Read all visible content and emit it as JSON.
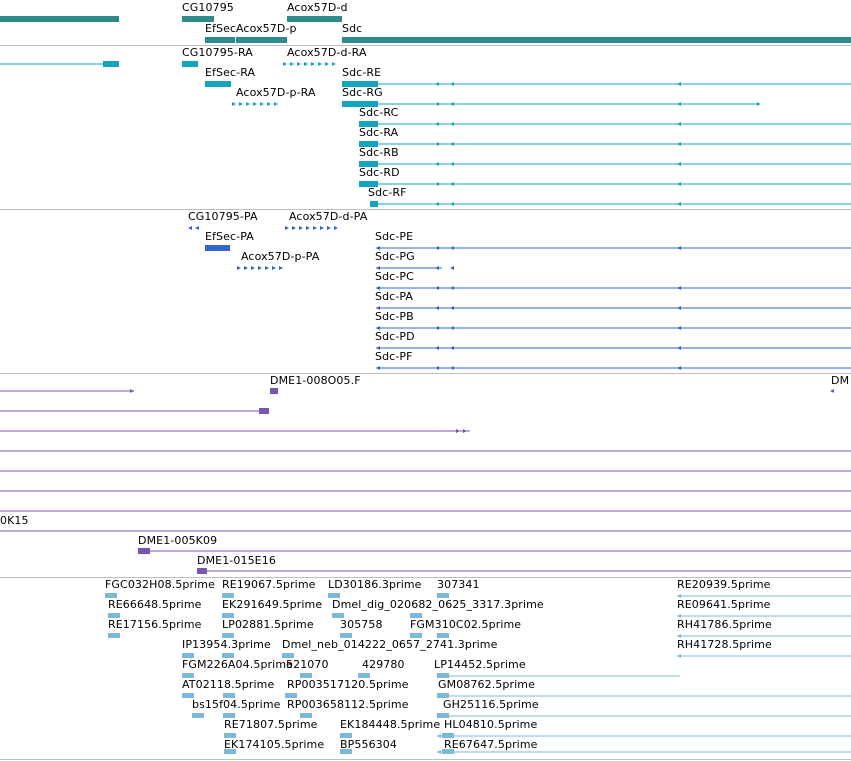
{
  "colors": {
    "gene": "#2e8b8b",
    "mrna": "#13a5bd",
    "protein": "#3366cc",
    "clone": "#7a55b0",
    "est": "#7eb8d9",
    "separator": "#bfbfbf"
  },
  "gene_track": {
    "labels": [
      "CG10795",
      "Acox57D-d",
      "EfSec",
      "Acox57D-p",
      "Sdc"
    ]
  },
  "mrna_track": {
    "labels": [
      "CG10795-RA",
      "Acox57D-d-RA",
      "EfSec-RA",
      "Sdc-RE",
      "Acox57D-p-RA",
      "Sdc-RG",
      "Sdc-RC",
      "Sdc-RA",
      "Sdc-RB",
      "Sdc-RD",
      "Sdc-RF"
    ]
  },
  "protein_track": {
    "labels": [
      "CG10795-PA",
      "Acox57D-d-PA",
      "EfSec-PA",
      "Sdc-PE",
      "Acox57D-p-PA",
      "Sdc-PG",
      "Sdc-PC",
      "Sdc-PA",
      "Sdc-PB",
      "Sdc-PD",
      "Sdc-PF"
    ]
  },
  "clone_track": {
    "labels": [
      "DME1-008O05.F",
      "DM",
      "0K15",
      "DME1-005K09",
      "DME1-015E16"
    ]
  },
  "est_track": {
    "labels": [
      "FGC032H08.5prime",
      "RE19067.5prime",
      "LD30186.3prime",
      "307341",
      "RE20939.5prime",
      "RE66648.5prime",
      "EK291649.5prime",
      "Dmel_dig_020682_0625_3317.3prime",
      "RE09641.5prime",
      "RE17156.5prime",
      "LP02881.5prime",
      "305758",
      "FGM310C02.5prime",
      "RH41786.5prime",
      "IP13954.3prime",
      "Dmel_neb_014222_0657_2741.3prime",
      "RH41728.5prime",
      "FGM226A04.5prime",
      "521070",
      "429780",
      "LP14452.5prime",
      "AT02118.5prime",
      "RP003517120.5prime",
      "GM08762.5prime",
      "bs15f04.5prime",
      "RP003658112.5prime",
      "GH25116.5prime",
      "RE71807.5prime",
      "EK184448.5prime",
      "HL04810.5prime",
      "EK174105.5prime",
      "BP556304",
      "RE67647.5prime"
    ]
  }
}
